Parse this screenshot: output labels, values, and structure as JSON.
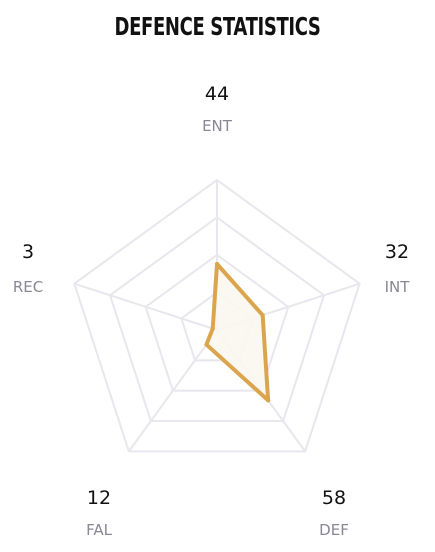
{
  "title": "DEFENCE STATISTICS",
  "chart_data": {
    "type": "radar",
    "title": "DEFENCE STATISTICS",
    "axes": [
      {
        "label": "ENT",
        "value": 44
      },
      {
        "label": "INT",
        "value": 32
      },
      {
        "label": "DEF",
        "value": 58
      },
      {
        "label": "FAL",
        "value": 12
      },
      {
        "label": "REC",
        "value": 3
      }
    ],
    "range": [
      0,
      100
    ],
    "grid_levels": 4,
    "colors": {
      "series_stroke": "#dba54e",
      "series_fill": "#fbf7ef",
      "grid": "#e8e7ee",
      "value_text": "#111111",
      "label_text": "#8a8794"
    }
  }
}
